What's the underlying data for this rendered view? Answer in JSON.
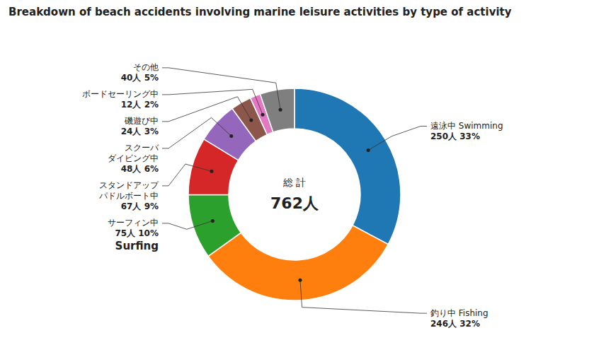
{
  "chart_data": {
    "type": "donut",
    "title": "Breakdown of beach accidents involving marine leisure activities by type of activity",
    "center_text": [
      "総 計",
      "762人"
    ],
    "categories": [
      "遠泳中  Swimming",
      "釣り中  Fishing",
      "サーフィン中",
      "スタンドアップ\nパドルボート中",
      "スクーバ\nダイビング中",
      "磯遊び中",
      "ボードセーリング中",
      "その他"
    ],
    "category_notes": [
      null,
      null,
      "Surfing",
      null,
      null,
      null,
      null,
      null
    ],
    "values": [
      250,
      246,
      75,
      67,
      48,
      24,
      12,
      40
    ],
    "value_labels": [
      "250人  33%",
      "246人  32%",
      "75人    10%",
      "67人    9%",
      "48人    6%",
      "24人    3%",
      "12人    2%",
      "40人    5%"
    ],
    "data_labels": true
  }
}
